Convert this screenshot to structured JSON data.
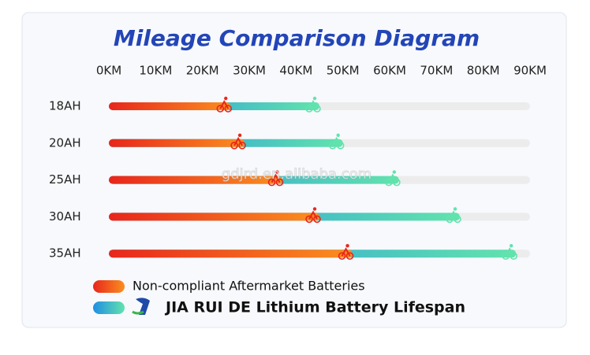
{
  "chart_data": {
    "type": "bar",
    "orientation": "horizontal",
    "title": "Mileage Comparison Diagram",
    "categories": [
      "18AH",
      "20AH",
      "25AH",
      "30AH",
      "35AH"
    ],
    "series": [
      {
        "name": "JIA RUI DE Lithium Battery Lifespan",
        "colors": [
          "#1f8ee3",
          "#62e3ad"
        ],
        "values": [
          45,
          50,
          62,
          75,
          87
        ]
      },
      {
        "name": "Non-compliant Aftermarket Batteries",
        "colors": [
          "#e8261c",
          "#fb8f1f"
        ],
        "values": [
          26,
          29,
          37,
          45,
          52
        ]
      }
    ],
    "xlim": [
      0,
      90
    ],
    "xticks": [
      {
        "value": 0,
        "label": "0KM"
      },
      {
        "value": 10,
        "label": "10KM"
      },
      {
        "value": 20,
        "label": "20KM"
      },
      {
        "value": 30,
        "label": "30KM"
      },
      {
        "value": 40,
        "label": "40KM"
      },
      {
        "value": 50,
        "label": "50KM"
      },
      {
        "value": 60,
        "label": "60KM"
      },
      {
        "value": 70,
        "label": "70KM"
      },
      {
        "value": 80,
        "label": "80KM"
      },
      {
        "value": 90,
        "label": "90KM"
      }
    ],
    "watermark": "gdjrd.en.alibaba.com"
  }
}
